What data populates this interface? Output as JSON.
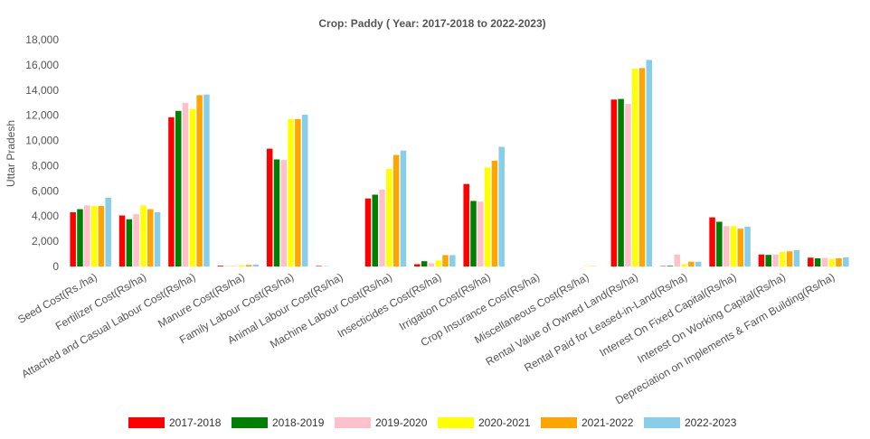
{
  "chart_data": {
    "type": "bar",
    "title": "Crop: Paddy ( Year: 2017-2018 to 2022-2023)",
    "ylabel": "Uttar Pradesh",
    "xlabel": "",
    "ylim": [
      0,
      18000
    ],
    "yticks": [
      0,
      2000,
      4000,
      6000,
      8000,
      10000,
      12000,
      14000,
      16000,
      18000
    ],
    "ytick_labels": [
      "0",
      "2,000",
      "4,000",
      "6,000",
      "8,000",
      "10,000",
      "12,000",
      "14,000",
      "16,000",
      "18,000"
    ],
    "legend_position": "bottom",
    "grid": false,
    "categories": [
      "Seed Cost(Rs./ha)",
      "Fertilizer Cost(Rs/ha)",
      "Attached and Casual Labour Cost(Rs/ha)",
      "Manure Cost(Rs/ha)",
      "Family Labour Cost(Rs/ha)",
      "Animal Labour Cost(Rs/ha)",
      "Machine Labour Cost(Rs/ha)",
      "Insecticides Cost(Rs/ha)",
      "Irrigation Cost(Rs/ha)",
      "Crop Insurance Cost(Rs/ha)",
      "Miscellaneous Cost(Rs/ha)",
      "Rental Value of Owned Land(Rs/ha)",
      "Rental Paid for Leased-in-Land(Rs/ha)",
      "Interest On Fixed Capital(Rs/ha)",
      "Interest On Working Capital(Rs/ha)",
      "Depreciation on Implements & Farm Building(Rs/ha)"
    ],
    "series": [
      {
        "name": "2017-2018",
        "color": "#ff0000",
        "values": [
          4300,
          4050,
          11850,
          60,
          9350,
          40,
          5400,
          180,
          6550,
          0,
          0,
          13250,
          30,
          3900,
          950,
          700
        ]
      },
      {
        "name": "2018-2019",
        "color": "#008000",
        "values": [
          4550,
          3750,
          12350,
          10,
          8500,
          10,
          5700,
          420,
          5200,
          0,
          0,
          13300,
          50,
          3550,
          920,
          650
        ]
      },
      {
        "name": "2019-2020",
        "color": "#ffc0cb",
        "values": [
          4850,
          4150,
          13000,
          40,
          8450,
          0,
          6100,
          250,
          5150,
          0,
          0,
          12900,
          950,
          3200,
          950,
          680
        ]
      },
      {
        "name": "2020-2021",
        "color": "#ffff00",
        "values": [
          4800,
          4850,
          12500,
          100,
          11700,
          0,
          7750,
          480,
          7850,
          0,
          30,
          15700,
          180,
          3200,
          1150,
          600
        ]
      },
      {
        "name": "2021-2022",
        "color": "#ffa500",
        "values": [
          4800,
          4550,
          13600,
          120,
          11700,
          0,
          8850,
          900,
          8400,
          0,
          20,
          15750,
          380,
          3000,
          1200,
          650
        ]
      },
      {
        "name": "2022-2023",
        "color": "#87ceeb",
        "values": [
          5450,
          4300,
          13650,
          150,
          12050,
          0,
          9200,
          900,
          9500,
          0,
          0,
          16400,
          370,
          3150,
          1300,
          720
        ]
      }
    ]
  }
}
